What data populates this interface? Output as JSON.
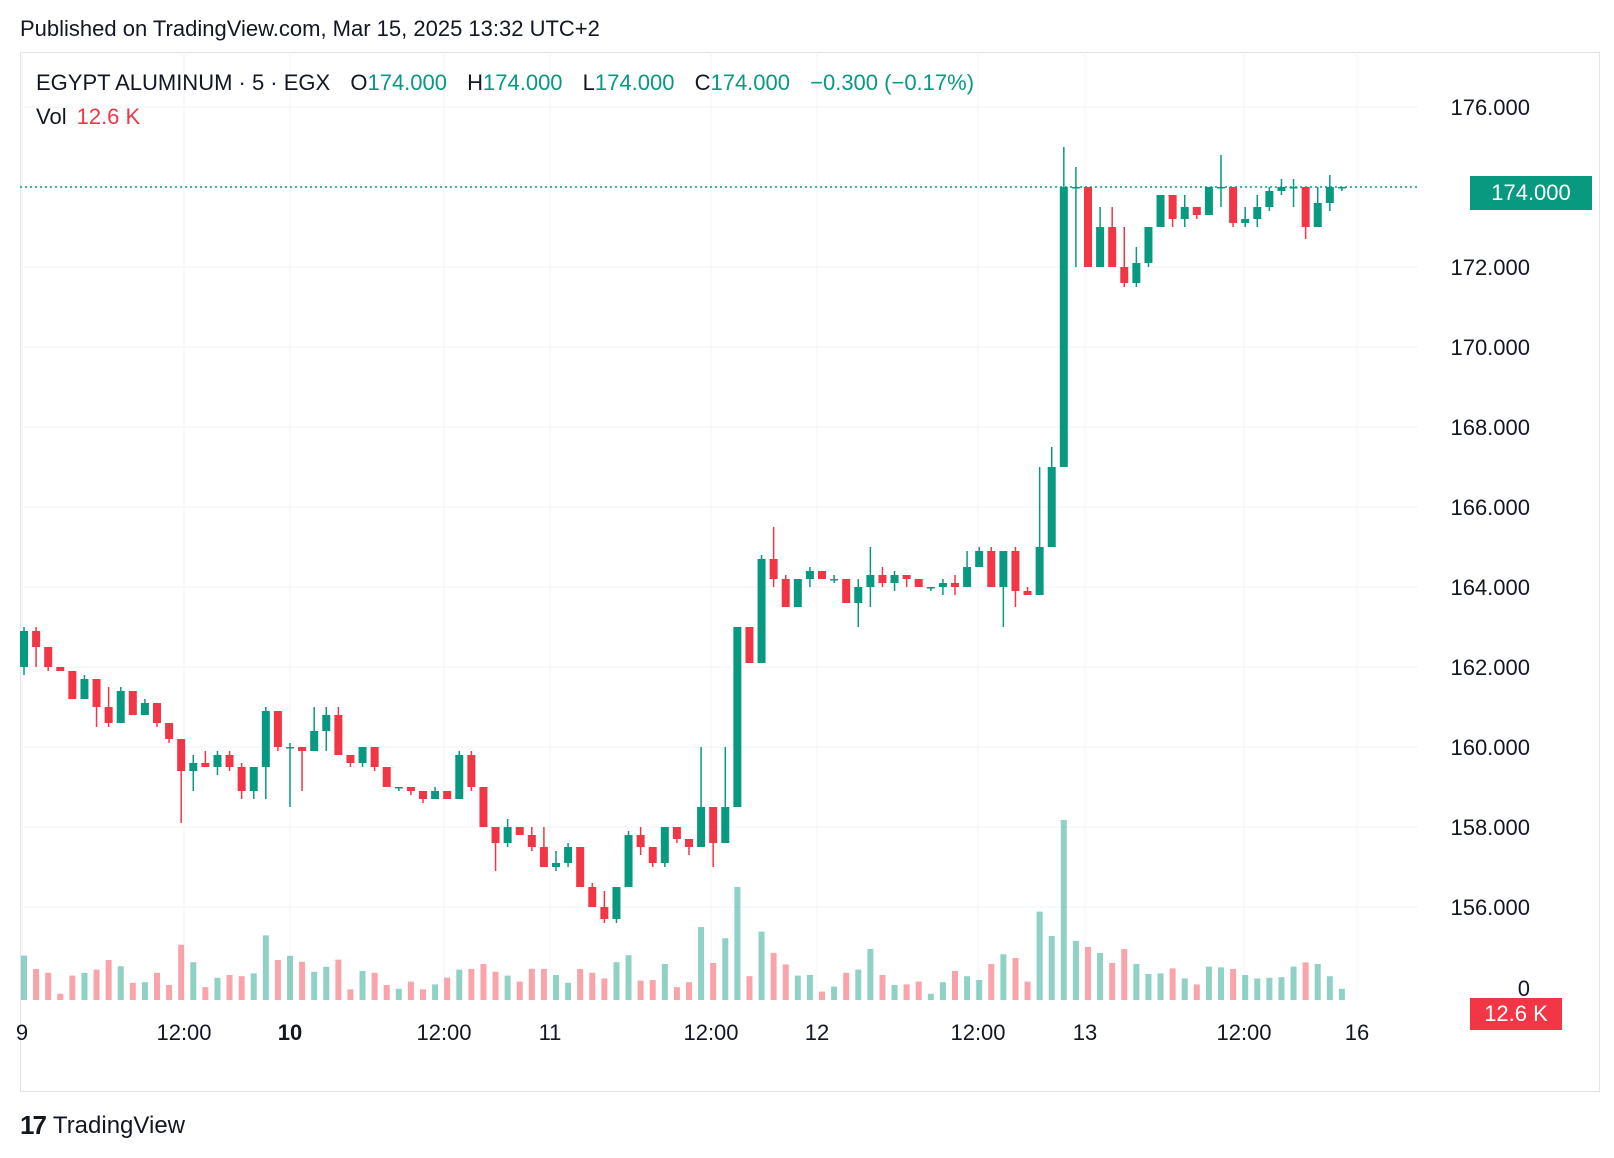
{
  "header": {
    "published": "Published on TradingView.com, Mar 15, 2025 13:32 UTC+2"
  },
  "legend": {
    "symbol": "EGYPT ALUMINUM · 5 · EGX",
    "open_label": "O",
    "open": "174.000",
    "high_label": "H",
    "high": "174.000",
    "low_label": "L",
    "low": "174.000",
    "close_label": "C",
    "close": "174.000",
    "change": "−0.300 (−0.17%)",
    "vol_label": "Vol",
    "vol_value": "12.6 K"
  },
  "badges": {
    "last_price": "174.000",
    "last_volume": "12.6 K"
  },
  "footer": {
    "brand": "TradingView",
    "logo_icon": "tradingview-logo-icon"
  },
  "colors": {
    "up": "#089981",
    "down": "#f23645",
    "grid": "#f0f3fa",
    "text": "#131722"
  },
  "chart_data": {
    "type": "candlestick",
    "title": "EGYPT ALUMINUM · 5 · EGX",
    "x_ticks": [
      "9",
      "12:00",
      "10",
      "12:00",
      "11",
      "12:00",
      "12",
      "12:00",
      "13",
      "12:00",
      "16"
    ],
    "y_ticks": [
      "156.000",
      "158.000",
      "160.000",
      "162.000",
      "164.000",
      "166.000",
      "168.000",
      "170.000",
      "172.000",
      "174.000",
      "176.000"
    ],
    "y_range": [
      154.2,
      177.4
    ],
    "last_price": 174.0,
    "grid": true,
    "candles": [
      [
        162.0,
        163.0,
        161.8,
        162.9
      ],
      [
        162.9,
        163.0,
        162.0,
        162.5
      ],
      [
        162.5,
        162.5,
        161.9,
        162.0
      ],
      [
        162.0,
        162.0,
        161.9,
        161.9
      ],
      [
        161.9,
        161.9,
        161.2,
        161.2
      ],
      [
        161.2,
        161.8,
        161.2,
        161.7
      ],
      [
        161.7,
        161.7,
        160.5,
        161.0
      ],
      [
        161.0,
        161.5,
        160.5,
        160.6
      ],
      [
        160.6,
        161.5,
        160.6,
        161.4
      ],
      [
        161.4,
        161.4,
        160.8,
        160.8
      ],
      [
        160.8,
        161.2,
        160.8,
        161.1
      ],
      [
        161.1,
        161.1,
        160.5,
        160.6
      ],
      [
        160.6,
        160.6,
        160.1,
        160.2
      ],
      [
        160.2,
        160.2,
        158.1,
        159.4
      ],
      [
        159.4,
        159.8,
        158.9,
        159.6
      ],
      [
        159.6,
        159.9,
        159.5,
        159.5
      ],
      [
        159.5,
        159.9,
        159.3,
        159.8
      ],
      [
        159.8,
        159.9,
        159.4,
        159.5
      ],
      [
        159.5,
        159.6,
        158.7,
        158.9
      ],
      [
        158.9,
        159.5,
        158.7,
        159.5
      ],
      [
        159.5,
        161.0,
        158.7,
        160.9
      ],
      [
        160.9,
        160.9,
        159.9,
        160.0
      ],
      [
        160.0,
        160.1,
        158.5,
        160.0
      ],
      [
        160.0,
        160.0,
        158.9,
        159.9
      ],
      [
        159.9,
        161.0,
        159.9,
        160.4
      ],
      [
        160.4,
        161.0,
        159.9,
        160.8
      ],
      [
        160.8,
        161.0,
        159.8,
        159.8
      ],
      [
        159.8,
        159.8,
        159.5,
        159.6
      ],
      [
        159.6,
        160.0,
        159.5,
        160.0
      ],
      [
        160.0,
        160.0,
        159.4,
        159.5
      ],
      [
        159.5,
        159.5,
        159.0,
        159.0
      ],
      [
        159.0,
        159.0,
        158.9,
        159.0
      ],
      [
        159.0,
        159.0,
        158.8,
        158.9
      ],
      [
        158.9,
        158.9,
        158.6,
        158.7
      ],
      [
        158.7,
        159.0,
        158.7,
        158.9
      ],
      [
        158.9,
        158.9,
        158.7,
        158.7
      ],
      [
        158.7,
        159.9,
        158.7,
        159.8
      ],
      [
        159.8,
        159.9,
        158.9,
        159.0
      ],
      [
        159.0,
        159.0,
        158.0,
        158.0
      ],
      [
        158.0,
        158.0,
        156.9,
        157.6
      ],
      [
        157.6,
        158.2,
        157.5,
        158.0
      ],
      [
        158.0,
        158.0,
        157.8,
        157.8
      ],
      [
        157.8,
        158.0,
        157.4,
        157.5
      ],
      [
        157.5,
        158.0,
        157.0,
        157.0
      ],
      [
        157.0,
        157.4,
        156.9,
        157.1
      ],
      [
        157.1,
        157.6,
        157.0,
        157.5
      ],
      [
        157.5,
        157.5,
        156.5,
        156.5
      ],
      [
        156.5,
        156.6,
        156.0,
        156.0
      ],
      [
        156.0,
        156.4,
        155.6,
        155.7
      ],
      [
        155.7,
        156.5,
        155.6,
        156.5
      ],
      [
        156.5,
        157.9,
        156.5,
        157.8
      ],
      [
        157.8,
        158.0,
        157.3,
        157.5
      ],
      [
        157.5,
        157.5,
        157.0,
        157.1
      ],
      [
        157.1,
        158.0,
        157.0,
        158.0
      ],
      [
        158.0,
        158.0,
        157.6,
        157.7
      ],
      [
        157.7,
        157.7,
        157.3,
        157.5
      ],
      [
        157.5,
        160.0,
        157.5,
        158.5
      ],
      [
        158.5,
        158.5,
        157.0,
        157.6
      ],
      [
        157.6,
        160.0,
        157.6,
        158.5
      ],
      [
        158.5,
        163.0,
        158.5,
        163.0
      ],
      [
        163.0,
        163.0,
        162.1,
        162.1
      ],
      [
        162.1,
        164.8,
        162.1,
        164.7
      ],
      [
        164.7,
        165.5,
        164.0,
        164.2
      ],
      [
        164.2,
        164.3,
        163.5,
        163.5
      ],
      [
        163.5,
        164.2,
        163.5,
        164.2
      ],
      [
        164.2,
        164.5,
        164.0,
        164.4
      ],
      [
        164.4,
        164.4,
        164.2,
        164.2
      ],
      [
        164.2,
        164.3,
        164.1,
        164.2
      ],
      [
        164.2,
        164.2,
        163.6,
        163.6
      ],
      [
        163.6,
        164.2,
        163.0,
        164.0
      ],
      [
        164.0,
        165.0,
        163.5,
        164.3
      ],
      [
        164.3,
        164.5,
        164.0,
        164.1
      ],
      [
        164.1,
        164.4,
        163.9,
        164.3
      ],
      [
        164.3,
        164.3,
        164.0,
        164.2
      ],
      [
        164.2,
        164.2,
        164.0,
        164.0
      ],
      [
        164.0,
        164.0,
        163.9,
        164.0
      ],
      [
        164.0,
        164.2,
        163.8,
        164.1
      ],
      [
        164.1,
        164.3,
        163.8,
        164.0
      ],
      [
        164.0,
        164.9,
        164.0,
        164.5
      ],
      [
        164.5,
        165.0,
        164.5,
        164.9
      ],
      [
        164.9,
        165.0,
        164.0,
        164.0
      ],
      [
        164.0,
        164.9,
        163.0,
        164.9
      ],
      [
        164.9,
        165.0,
        163.5,
        163.9
      ],
      [
        163.9,
        164.0,
        163.8,
        163.8
      ],
      [
        163.8,
        167.0,
        163.8,
        165.0
      ],
      [
        165.0,
        167.5,
        165.0,
        167.0
      ],
      [
        167.0,
        175.0,
        167.0,
        174.0
      ],
      [
        174.0,
        174.5,
        172.0,
        174.0
      ],
      [
        174.0,
        174.0,
        172.0,
        172.0
      ],
      [
        172.0,
        173.5,
        172.0,
        173.0
      ],
      [
        173.0,
        173.5,
        172.0,
        172.0
      ],
      [
        172.0,
        173.0,
        171.5,
        171.6
      ],
      [
        171.6,
        172.5,
        171.5,
        172.1
      ],
      [
        172.1,
        173.0,
        172.0,
        173.0
      ],
      [
        173.0,
        173.8,
        173.0,
        173.8
      ],
      [
        173.8,
        173.8,
        173.0,
        173.2
      ],
      [
        173.2,
        173.8,
        173.0,
        173.5
      ],
      [
        173.5,
        173.5,
        173.2,
        173.3
      ],
      [
        173.3,
        174.0,
        173.3,
        174.0
      ],
      [
        174.0,
        174.8,
        173.5,
        174.0
      ],
      [
        174.0,
        174.0,
        173.0,
        173.1
      ],
      [
        173.1,
        173.5,
        173.0,
        173.2
      ],
      [
        173.2,
        173.8,
        173.0,
        173.5
      ],
      [
        173.5,
        174.0,
        173.4,
        173.9
      ],
      [
        173.9,
        174.2,
        173.8,
        174.0
      ],
      [
        174.0,
        174.2,
        173.5,
        174.0
      ],
      [
        174.0,
        174.0,
        172.7,
        173.0
      ],
      [
        173.0,
        174.0,
        173.0,
        173.6
      ],
      [
        173.6,
        174.3,
        173.4,
        174.0
      ],
      [
        174.0,
        174.0,
        173.9,
        174.0
      ]
    ],
    "volume_axis_label": "0"
  }
}
